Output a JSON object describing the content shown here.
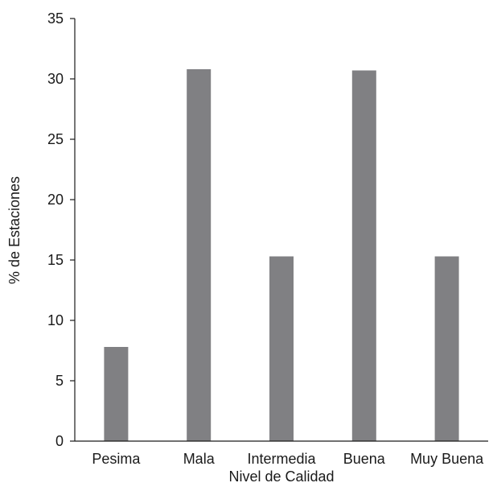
{
  "chart_data": {
    "type": "bar",
    "categories": [
      "Pesima",
      "Mala",
      "Intermedia",
      "Buena",
      "Muy Buena"
    ],
    "values": [
      7.8,
      30.8,
      15.3,
      30.7,
      15.3
    ],
    "xlabel": "Nivel de Calidad",
    "ylabel": "% de Estaciones",
    "ylim": [
      0,
      35
    ],
    "yticks": [
      0,
      5,
      10,
      15,
      20,
      25,
      30,
      35
    ],
    "grid": false,
    "bar_color": "#808083",
    "axis_color": "#1a1a1a"
  }
}
